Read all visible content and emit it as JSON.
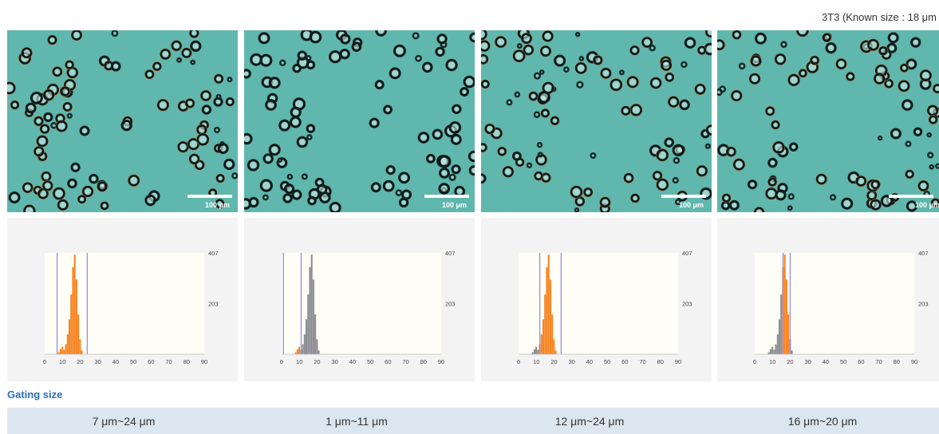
{
  "title": "3T3 (Known size : 18 μm",
  "scale_bar_label": "100 μm",
  "gating_label": "Gating size",
  "gating_values": [
    "7 μm~24 μm",
    "1 μm~11 μm",
    "12 μm~24 μm",
    "16 μm~20 μm"
  ],
  "colors": {
    "gated": "#f7821f",
    "ungated": "#8a8a92",
    "gate_line": "#8e86e0",
    "plot_bg": "#fffef6",
    "panel_bg": "#f3f3f3",
    "cells_bg": "#5fb7ad",
    "accent_text": "#2a6ebc"
  },
  "chart_data": [
    {
      "type": "bar",
      "x_ticks": [
        0,
        10,
        20,
        30,
        40,
        50,
        60,
        70,
        80,
        90
      ],
      "y_ticks": [
        203,
        407
      ],
      "xlim": [
        0,
        90
      ],
      "ylim": [
        0,
        407
      ],
      "gate": [
        7,
        24
      ],
      "x": [
        8,
        9,
        10,
        11,
        12,
        13,
        14,
        15,
        16,
        17,
        18,
        19,
        20,
        21
      ],
      "values": [
        8,
        20,
        30,
        18,
        40,
        80,
        140,
        240,
        350,
        400,
        300,
        160,
        60,
        15
      ],
      "gated": [
        true,
        true,
        true,
        true,
        true,
        true,
        true,
        true,
        true,
        true,
        true,
        true,
        true,
        true
      ]
    },
    {
      "type": "bar",
      "x_ticks": [
        0,
        10,
        20,
        30,
        40,
        50,
        60,
        70,
        80,
        90
      ],
      "y_ticks": [
        203,
        407
      ],
      "xlim": [
        0,
        90
      ],
      "ylim": [
        0,
        407
      ],
      "gate": [
        1,
        11
      ],
      "x": [
        8,
        9,
        10,
        11,
        12,
        13,
        14,
        15,
        16,
        17,
        18,
        19,
        20,
        21
      ],
      "values": [
        8,
        20,
        30,
        18,
        40,
        80,
        140,
        240,
        350,
        400,
        300,
        160,
        60,
        15
      ],
      "gated": [
        true,
        true,
        true,
        false,
        false,
        false,
        false,
        false,
        false,
        false,
        false,
        false,
        false,
        false
      ]
    },
    {
      "type": "bar",
      "x_ticks": [
        0,
        10,
        20,
        30,
        40,
        50,
        60,
        70,
        80,
        90
      ],
      "y_ticks": [
        203,
        407
      ],
      "xlim": [
        0,
        90
      ],
      "ylim": [
        0,
        407
      ],
      "gate": [
        12,
        24
      ],
      "x": [
        8,
        9,
        10,
        11,
        12,
        13,
        14,
        15,
        16,
        17,
        18,
        19,
        20,
        21
      ],
      "values": [
        8,
        20,
        30,
        18,
        40,
        80,
        140,
        240,
        350,
        400,
        300,
        160,
        60,
        15
      ],
      "gated": [
        false,
        false,
        false,
        false,
        true,
        true,
        true,
        true,
        true,
        true,
        true,
        true,
        true,
        true
      ]
    },
    {
      "type": "bar",
      "x_ticks": [
        0,
        10,
        20,
        30,
        40,
        50,
        60,
        70,
        80,
        90
      ],
      "y_ticks": [
        203,
        407
      ],
      "xlim": [
        0,
        90
      ],
      "ylim": [
        0,
        407
      ],
      "gate": [
        16,
        20
      ],
      "x": [
        8,
        9,
        10,
        11,
        12,
        13,
        14,
        15,
        16,
        17,
        18,
        19,
        20,
        21
      ],
      "values": [
        8,
        20,
        30,
        18,
        40,
        80,
        140,
        240,
        350,
        400,
        300,
        160,
        60,
        15
      ],
      "gated": [
        false,
        false,
        false,
        false,
        false,
        false,
        false,
        false,
        true,
        true,
        true,
        true,
        false,
        false
      ]
    }
  ]
}
